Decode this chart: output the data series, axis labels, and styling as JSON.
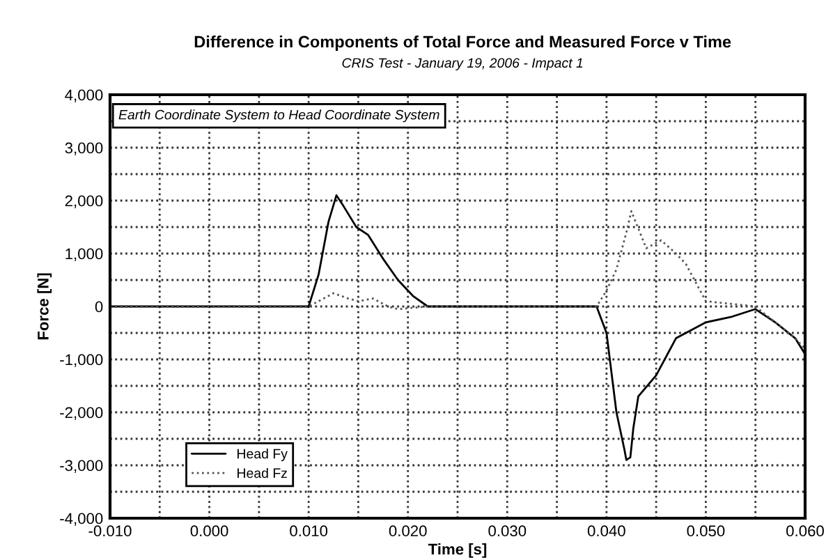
{
  "chart_data": {
    "type": "line",
    "title": "Difference in Components of Total Force and Measured Force v Time",
    "subtitle": "CRIS Test - January 19, 2006 - Impact 1",
    "xlabel": "Time [s]",
    "ylabel": "Force [N]",
    "annotations": [
      "Earth Coordinate System to Head Coordinate System"
    ],
    "xlim": [
      -0.01,
      0.06
    ],
    "xticks": [
      {
        "value": -0.01,
        "label": "-0.010"
      },
      {
        "value": -0.005,
        "label": null
      },
      {
        "value": 0.0,
        "label": "0.000"
      },
      {
        "value": 0.005,
        "label": null
      },
      {
        "value": 0.01,
        "label": "0.010"
      },
      {
        "value": 0.015,
        "label": null
      },
      {
        "value": 0.02,
        "label": "0.020"
      },
      {
        "value": 0.025,
        "label": null
      },
      {
        "value": 0.03,
        "label": "0.030"
      },
      {
        "value": 0.035,
        "label": null
      },
      {
        "value": 0.04,
        "label": "0.040"
      },
      {
        "value": 0.045,
        "label": null
      },
      {
        "value": 0.05,
        "label": "0.050"
      },
      {
        "value": 0.055,
        "label": null
      },
      {
        "value": 0.06,
        "label": "0.060"
      }
    ],
    "ylim": [
      -4000,
      4000
    ],
    "yticks": [
      {
        "value": -4000,
        "label": "-4,000"
      },
      {
        "value": -3500,
        "label": null
      },
      {
        "value": -3000,
        "label": "-3,000"
      },
      {
        "value": -2500,
        "label": null
      },
      {
        "value": -2000,
        "label": "-2,000"
      },
      {
        "value": -1500,
        "label": null
      },
      {
        "value": -1000,
        "label": "-1,000"
      },
      {
        "value": -500,
        "label": null
      },
      {
        "value": 0,
        "label": "0"
      },
      {
        "value": 500,
        "label": null
      },
      {
        "value": 1000,
        "label": "1,000"
      },
      {
        "value": 1500,
        "label": null
      },
      {
        "value": 2000,
        "label": "2,000"
      },
      {
        "value": 2500,
        "label": null
      },
      {
        "value": 3000,
        "label": "3,000"
      },
      {
        "value": 3500,
        "label": null
      },
      {
        "value": 4000,
        "label": "4,000"
      }
    ],
    "grid": true,
    "legend": "bottom left",
    "series": [
      {
        "name": "Head Fy",
        "color": "#000000",
        "line_style": "solid",
        "x": [
          -0.01,
          0.0,
          0.01,
          0.011,
          0.012,
          0.0128,
          0.0135,
          0.0148,
          0.016,
          0.0175,
          0.019,
          0.0205,
          0.022,
          0.03,
          0.039,
          0.04,
          0.041,
          0.0418,
          0.042,
          0.0424,
          0.0427,
          0.0432,
          0.045,
          0.047,
          0.048,
          0.05,
          0.0525,
          0.055,
          0.057,
          0.059,
          0.06
        ],
        "values": [
          0,
          0,
          0,
          600,
          1600,
          2100,
          1900,
          1500,
          1350,
          900,
          500,
          200,
          0,
          0,
          0,
          -500,
          -2000,
          -2700,
          -2900,
          -2850,
          -2300,
          -1700,
          -1300,
          -600,
          -500,
          -300,
          -200,
          -50,
          -300,
          -600,
          -900
        ]
      },
      {
        "name": "Head Fz",
        "color": "#555555",
        "line_style": "dotted",
        "x": [
          -0.01,
          0.0,
          0.01,
          0.011,
          0.0125,
          0.014,
          0.015,
          0.0165,
          0.018,
          0.019,
          0.022,
          0.03,
          0.039,
          0.04,
          0.041,
          0.042,
          0.0425,
          0.044,
          0.0455,
          0.047,
          0.048,
          0.05,
          0.0525,
          0.055,
          0.057,
          0.059,
          0.06
        ],
        "values": [
          0,
          0,
          0,
          100,
          250,
          150,
          100,
          150,
          0,
          -50,
          0,
          0,
          0,
          300,
          700,
          1400,
          1800,
          1100,
          1250,
          1000,
          800,
          100,
          50,
          0,
          -300,
          -600,
          -800
        ]
      }
    ]
  }
}
